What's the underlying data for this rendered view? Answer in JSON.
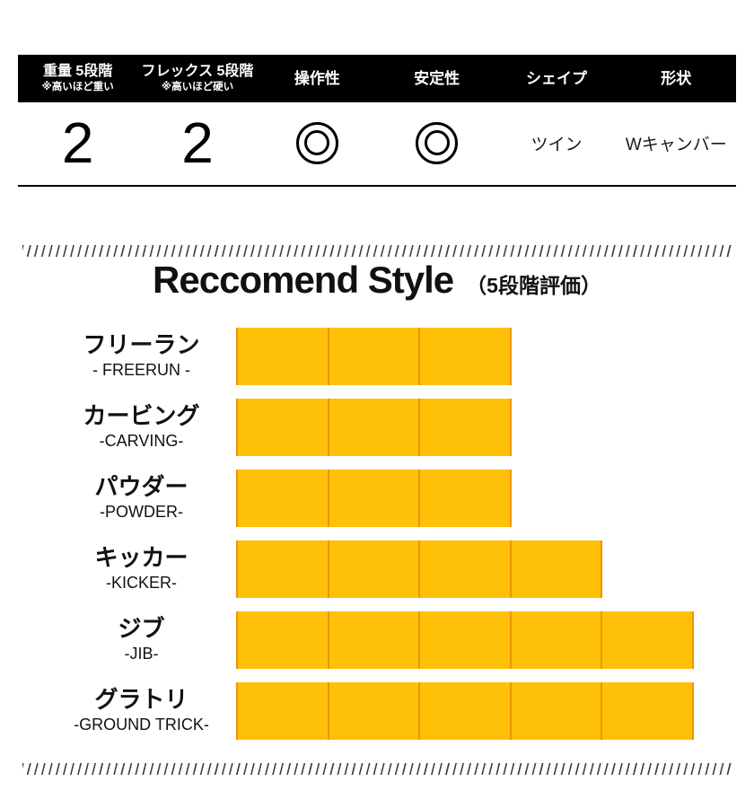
{
  "spec_table": {
    "columns": [
      {
        "key": "weight",
        "label": "重量 5段階",
        "note": "※高いほど重い",
        "value": "2",
        "display": "number"
      },
      {
        "key": "flex",
        "label": "フレックス 5段階",
        "note": "※高いほど硬い",
        "value": "2",
        "display": "number"
      },
      {
        "key": "control",
        "label": "操作性",
        "value": "◎",
        "display": "double-circle"
      },
      {
        "key": "stability",
        "label": "安定性",
        "value": "◎",
        "display": "double-circle"
      },
      {
        "key": "shape",
        "label": "シェイプ",
        "value": "ツイン",
        "display": "text"
      },
      {
        "key": "profile",
        "label": "形状",
        "value": "Wキャンバー",
        "display": "text"
      }
    ]
  },
  "recommend_section": {
    "title": "Reccomend Style",
    "subtitle": "（5段階評価）"
  },
  "chart_data": {
    "type": "bar",
    "orientation": "horizontal",
    "title": "Reccomend Style",
    "subtitle": "（5段階評価）",
    "scale_max": 5,
    "grid": false,
    "legend": false,
    "categories": [
      "フリーラン",
      "カービング",
      "パウダー",
      "キッカー",
      "ジブ",
      "グラトリ"
    ],
    "categories_en": [
      "- FREERUN -",
      "-CARVING-",
      "-POWDER-",
      "-KICKER-",
      "-JIB-",
      "-GROUND TRICK-"
    ],
    "category_keys": [
      "freerun",
      "carving",
      "powder",
      "kicker",
      "jib",
      "ground-trick"
    ],
    "values": [
      3,
      3,
      3,
      4,
      5,
      5
    ],
    "bar_color": "#FFC107",
    "bar_divider_color": "#ED9405"
  },
  "colors": {
    "header_bg": "#000000",
    "header_text": "#FFFFFF",
    "accent_yellow": "#FFC107",
    "bar_divider": "#ED9405",
    "hatch": "#404040"
  }
}
